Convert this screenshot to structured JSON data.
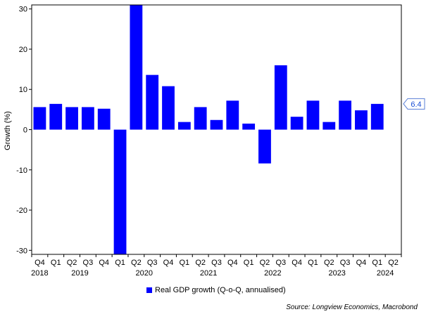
{
  "chart_data": {
    "type": "bar",
    "ylabel": "Growth (%)",
    "ylim": [
      -31,
      31
    ],
    "yticks": [
      30,
      20,
      10,
      0,
      -10,
      -20,
      -30
    ],
    "categories": [
      "Q4 2018",
      "Q1 2019",
      "Q2 2019",
      "Q3 2019",
      "Q4 2019",
      "Q1 2020",
      "Q2 2020",
      "Q3 2020",
      "Q4 2020",
      "Q1 2021",
      "Q2 2021",
      "Q3 2021",
      "Q4 2021",
      "Q1 2022",
      "Q2 2022",
      "Q3 2022",
      "Q4 2022",
      "Q1 2023",
      "Q2 2023",
      "Q3 2023",
      "Q4 2023",
      "Q1 2024",
      "Q2 2024"
    ],
    "quarter_labels": [
      "Q4",
      "Q1",
      "Q2",
      "Q3",
      "Q4",
      "Q1",
      "Q2",
      "Q3",
      "Q4",
      "Q1",
      "Q2",
      "Q3",
      "Q4",
      "Q1",
      "Q2",
      "Q3",
      "Q4",
      "Q1",
      "Q2",
      "Q3",
      "Q4",
      "Q1",
      "Q2"
    ],
    "year_labels": [
      {
        "label": "2018",
        "index": 0
      },
      {
        "label": "2019",
        "index": 2.5
      },
      {
        "label": "2020",
        "index": 6.5
      },
      {
        "label": "2021",
        "index": 10.5
      },
      {
        "label": "2022",
        "index": 14.5
      },
      {
        "label": "2023",
        "index": 18.5
      },
      {
        "label": "2024",
        "index": 21.5
      }
    ],
    "series": [
      {
        "name": "Real GDP growth (Q-o-Q, annualised)",
        "color": "#0000ff",
        "values": [
          5.6,
          6.4,
          5.6,
          5.6,
          5.2,
          -31.6,
          35.3,
          13.6,
          10.8,
          1.9,
          5.6,
          2.4,
          7.2,
          1.5,
          -8.4,
          16.0,
          3.2,
          7.2,
          1.9,
          7.2,
          4.8,
          6.4,
          null
        ]
      }
    ],
    "callout": {
      "value": 6.4,
      "label": "6.4"
    }
  },
  "legend": {
    "label": "Real GDP growth (Q-o-Q, annualised)",
    "color": "#0000ff"
  },
  "source": "Source: Longview Economics, Macrobond"
}
